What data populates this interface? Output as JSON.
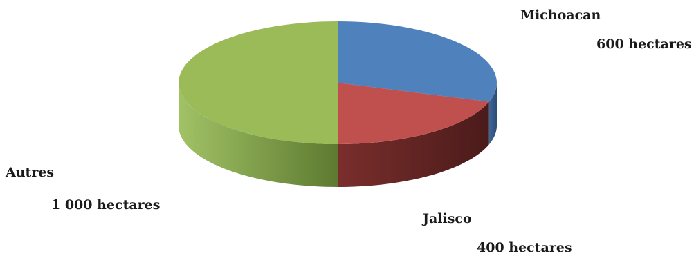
{
  "chart_data": {
    "type": "pie",
    "style": "3d",
    "title": "",
    "unit": "hectares",
    "slices": [
      {
        "name": "Michoacan",
        "value": 600,
        "value_label": "600 hectares",
        "color": "#4f81bd",
        "side_color": "#2c4d75"
      },
      {
        "name": "Jalisco",
        "value": 400,
        "value_label": "400 hectares",
        "color": "#c0504d",
        "side_color": "#7a2b2a"
      },
      {
        "name": "Autres",
        "value": 1000,
        "value_label": "1 000 hectares",
        "color": "#9bbb59",
        "side_color": "#5f7a30"
      }
    ],
    "legend": "none"
  }
}
